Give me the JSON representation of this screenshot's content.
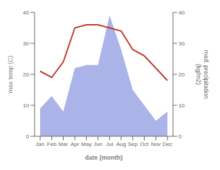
{
  "chart_data": {
    "type": "line",
    "categories": [
      "Jan",
      "Feb",
      "Mar",
      "Apr",
      "May",
      "Jun",
      "Jul",
      "Aug",
      "Sep",
      "Oct",
      "Nov",
      "Dec"
    ],
    "series": [
      {
        "type": "area",
        "axis": "y2",
        "color": "#aab4e8",
        "values": [
          9,
          13,
          8,
          22,
          23,
          23,
          39,
          28,
          15,
          10,
          5,
          8
        ]
      },
      {
        "color": "#c0392b",
        "values": [
          21,
          19,
          24,
          35,
          36,
          36,
          35,
          34,
          28,
          26,
          22,
          18
        ]
      }
    ],
    "xlabel": "date (month)",
    "ylabel": "max temp (C)",
    "y2label": "med. precipitation\n(kg/m2)",
    "ylim": [
      0,
      40
    ],
    "yticks": [
      0,
      10,
      20,
      30,
      40
    ],
    "y2lim": [
      0,
      40
    ],
    "y2ticks": [
      0,
      10,
      20,
      30,
      40
    ],
    "grid": false
  }
}
